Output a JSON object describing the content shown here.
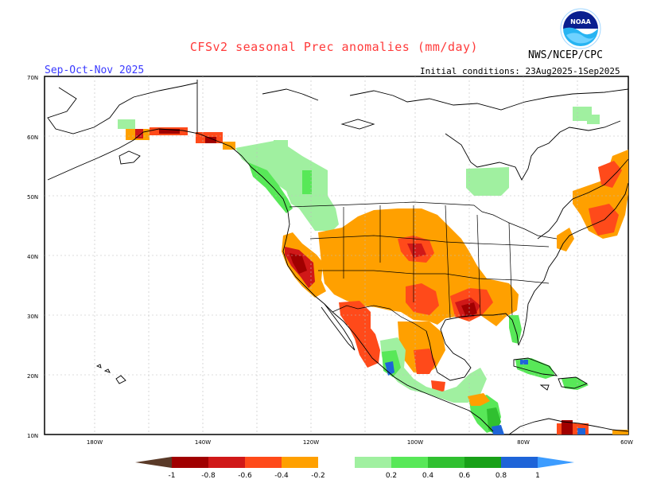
{
  "title": "CFSv2 seasonal Prec anomalies (mm/day)",
  "period": "Sep-Oct-Nov 2025",
  "agency": "NWS/NCEP/CPC",
  "initial_conditions": "Initial conditions: 23Aug2025-1Sep2025",
  "logo": {
    "text": "NOAA",
    "icon": "noaa-logo-icon"
  },
  "axes": {
    "lat_ticks": [
      "70N",
      "60N",
      "50N",
      "40N",
      "30N",
      "20N",
      "10N"
    ],
    "lon_ticks": [
      "180W",
      "140W",
      "120W",
      "100W",
      "80W",
      "60W"
    ]
  },
  "colorbar": {
    "labels": [
      "-1",
      "-0.8",
      "-0.6",
      "-0.4",
      "-0.2",
      "0.2",
      "0.4",
      "0.6",
      "0.8",
      "1"
    ],
    "colors": [
      "#5a3a28",
      "#a00000",
      "#d01818",
      "#ff4a1a",
      "#ffa000",
      "#ffffff",
      "#a0f0a0",
      "#58e858",
      "#30c030",
      "#18a018",
      "#1e64d8",
      "#3c9cff"
    ]
  },
  "colors": {
    "dry_strong": "#a00000",
    "dry_moderate": "#d01818",
    "dry_light": "#ff4a1a",
    "dry_weak": "#ffa000",
    "wet_weak": "#a0f0a0",
    "wet_light": "#58e858",
    "wet_moderate": "#30c030",
    "wet_strong": "#18a018",
    "very_wet": "#1e64d8"
  }
}
